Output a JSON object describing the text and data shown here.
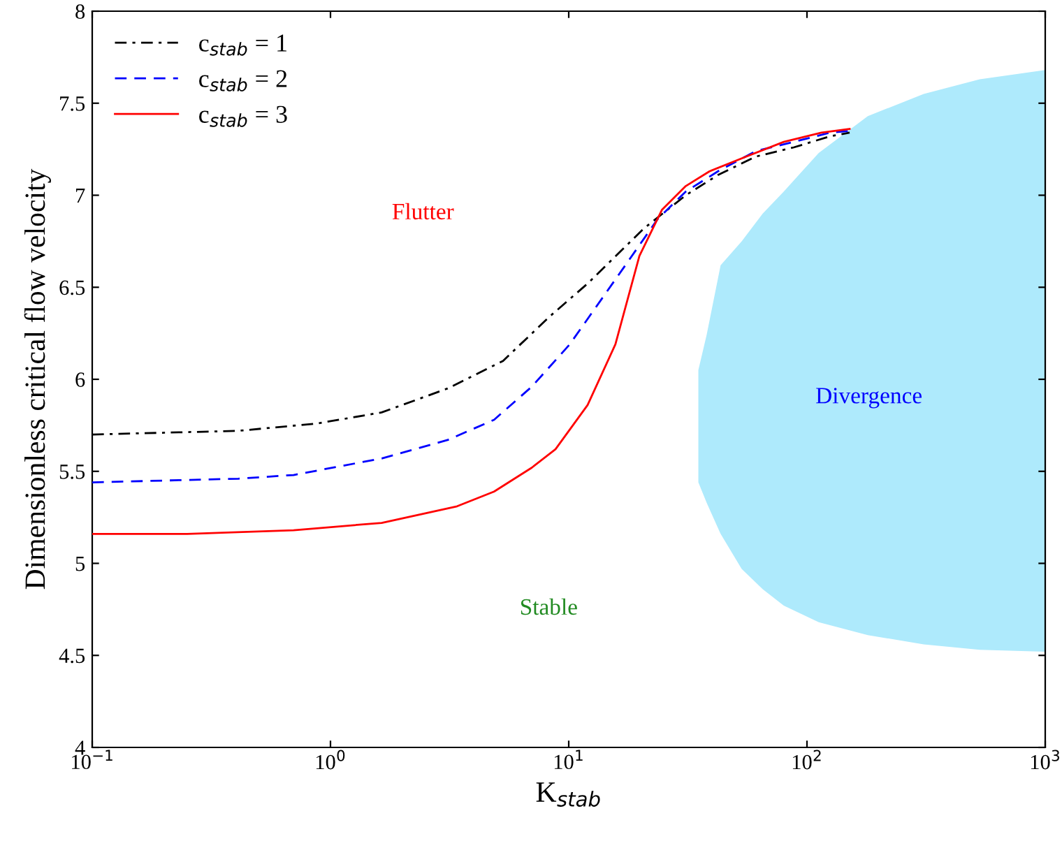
{
  "chart_data": {
    "type": "line",
    "xlabel": "K$_{stab}$",
    "ylabel": "Dimensionless critical flow velocity",
    "log": "x",
    "xlim": [
      0.1,
      1000
    ],
    "ylim": [
      4,
      8
    ],
    "xticks": [
      {
        "value": 0.1,
        "label": "10$^{−1}$"
      },
      {
        "value": 1,
        "label": "10$^{0}$"
      },
      {
        "value": 10,
        "label": "10$^{1}$"
      },
      {
        "value": 100,
        "label": "10$^{2}$"
      },
      {
        "value": 1000,
        "label": "10$^{3}$"
      }
    ],
    "yticks": [
      4,
      4.5,
      5,
      5.5,
      6,
      6.5,
      7,
      7.5,
      8
    ],
    "grid": false,
    "legend": "top left",
    "series": [
      {
        "type": "area",
        "color": "#aeeafc",
        "x": [
          35.0,
          37.9,
          43.4,
          53.2,
          65.2,
          79.9,
          112,
          180,
          309,
          531,
          1000
        ],
        "values": [
          null,
          null,
          null,
          null,
          null,
          null,
          null,
          null,
          null,
          null,
          null
        ],
        "upper": [
          6.05,
          6.24,
          6.62,
          6.75,
          6.9,
          7.02,
          7.23,
          7.43,
          7.55,
          7.63,
          7.68
        ],
        "lower": [
          5.44,
          5.33,
          5.16,
          4.97,
          4.86,
          4.77,
          4.68,
          4.61,
          4.56,
          4.53,
          4.52
        ]
      },
      {
        "name": "c$_{stab}$ = 1",
        "color": "#000000",
        "line_style": "dashdot",
        "x": [
          0.1,
          0.41,
          0.88,
          1.64,
          3.1,
          5.3,
          8.3,
          12,
          20.7,
          31,
          42.3,
          61,
          88,
          125,
          151
        ],
        "values": [
          5.7,
          5.72,
          5.76,
          5.82,
          5.95,
          6.1,
          6.34,
          6.52,
          6.82,
          7.0,
          7.11,
          7.21,
          7.26,
          7.32,
          7.34
        ]
      },
      {
        "name": "c$_{stab}$ = 2",
        "color": "#0000ff",
        "line_style": "dashed",
        "x": [
          0.1,
          0.41,
          0.7,
          1.64,
          3.1,
          4.86,
          7.0,
          10.1,
          17.3,
          23.6,
          31,
          42.3,
          61,
          88,
          125,
          151
        ],
        "values": [
          5.44,
          5.46,
          5.48,
          5.57,
          5.67,
          5.78,
          5.96,
          6.19,
          6.62,
          6.87,
          7.02,
          7.13,
          7.24,
          7.29,
          7.34,
          7.35
        ]
      },
      {
        "name": "c$_{stab}$ = 3",
        "color": "#ff0000",
        "line_style": "solid",
        "x": [
          0.1,
          0.25,
          0.7,
          1.64,
          3.4,
          4.86,
          7.0,
          8.8,
          12,
          15.7,
          19.8,
          24.6,
          31,
          39,
          55.5,
          79.9,
          115,
          151
        ],
        "values": [
          5.16,
          5.16,
          5.18,
          5.22,
          5.31,
          5.39,
          5.52,
          5.62,
          5.86,
          6.19,
          6.67,
          6.92,
          7.05,
          7.13,
          7.21,
          7.29,
          7.34,
          7.36
        ]
      }
    ],
    "annotations": [
      "Flutter",
      "Stable",
      "Divergence"
    ]
  }
}
